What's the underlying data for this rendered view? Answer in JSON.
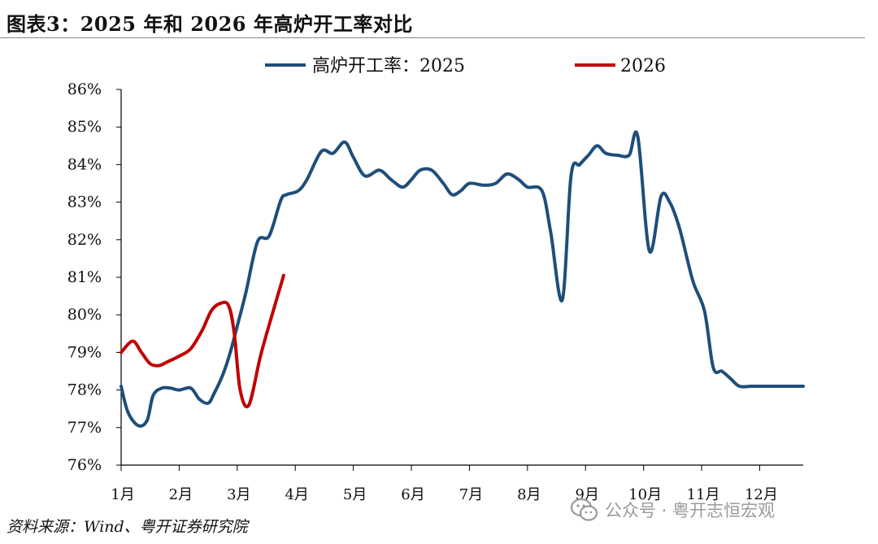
{
  "header": {
    "title": "图表3：2025 年和 2026 年高炉开工率对比"
  },
  "footer": {
    "source": "资料来源：Wind、粤开证券研究院",
    "watermark": "公众号 · 粤开志恒宏观",
    "watermark_icon": "wechat-icon"
  },
  "chart_data": {
    "type": "line",
    "title": "",
    "xlabel": "",
    "ylabel": "",
    "ylim": [
      76,
      86
    ],
    "y_ticks": [
      "76%",
      "77%",
      "78%",
      "79%",
      "80%",
      "81%",
      "82%",
      "83%",
      "84%",
      "85%",
      "86%"
    ],
    "x_ticks": [
      "1月",
      "2月",
      "3月",
      "4月",
      "5月",
      "6月",
      "7月",
      "8月",
      "9月",
      "10月",
      "11月",
      "12月"
    ],
    "x_domain": [
      1,
      12.75
    ],
    "legend_position": "top-center",
    "grid": false,
    "series": [
      {
        "name": "高炉开工率：2025",
        "color": "#1f4e79",
        "x": [
          1.0,
          1.12,
          1.3,
          1.45,
          1.55,
          1.7,
          1.85,
          2.0,
          2.2,
          2.35,
          2.5,
          2.6,
          2.75,
          2.88,
          3.0,
          3.15,
          3.35,
          3.55,
          3.75,
          3.85,
          4.05,
          4.2,
          4.45,
          4.65,
          4.85,
          5.0,
          5.2,
          5.45,
          5.65,
          5.85,
          6.0,
          6.15,
          6.35,
          6.55,
          6.7,
          6.85,
          7.0,
          7.25,
          7.45,
          7.65,
          7.85,
          8.0,
          8.25,
          8.4,
          8.6,
          8.75,
          8.9,
          9.05,
          9.2,
          9.35,
          9.55,
          9.75,
          9.9,
          10.1,
          10.3,
          10.45,
          10.62,
          10.85,
          11.05,
          11.2,
          11.35,
          11.5,
          11.65,
          11.85,
          12.05,
          12.3,
          12.5,
          12.75
        ],
        "values": [
          78.1,
          77.4,
          77.05,
          77.2,
          77.85,
          78.05,
          78.05,
          78.0,
          78.05,
          77.75,
          77.65,
          77.9,
          78.4,
          79.0,
          79.7,
          80.6,
          81.95,
          82.1,
          83.05,
          83.2,
          83.3,
          83.6,
          84.35,
          84.3,
          84.6,
          84.2,
          83.7,
          83.85,
          83.6,
          83.4,
          83.6,
          83.85,
          83.85,
          83.5,
          83.2,
          83.3,
          83.5,
          83.45,
          83.5,
          83.75,
          83.6,
          83.4,
          83.3,
          82.2,
          80.4,
          83.7,
          84.0,
          84.25,
          84.5,
          84.3,
          84.25,
          84.25,
          84.75,
          81.7,
          83.15,
          83.0,
          82.3,
          80.9,
          80.1,
          78.6,
          78.5,
          78.3,
          78.1,
          78.1,
          78.1,
          78.1,
          78.1,
          78.1
        ],
        "values_note": ""
      },
      {
        "name": "2026",
        "color": "#c00000",
        "x": [
          1.0,
          1.2,
          1.35,
          1.5,
          1.65,
          1.8,
          2.0,
          2.2,
          2.4,
          2.55,
          2.7,
          2.85,
          2.95,
          3.05,
          3.2,
          3.4,
          3.6,
          3.8
        ],
        "values": [
          79.0,
          79.3,
          79.0,
          78.7,
          78.65,
          78.75,
          78.9,
          79.1,
          79.6,
          80.1,
          80.3,
          80.25,
          79.5,
          78.0,
          77.6,
          78.9,
          80.0,
          81.05
        ]
      }
    ]
  }
}
